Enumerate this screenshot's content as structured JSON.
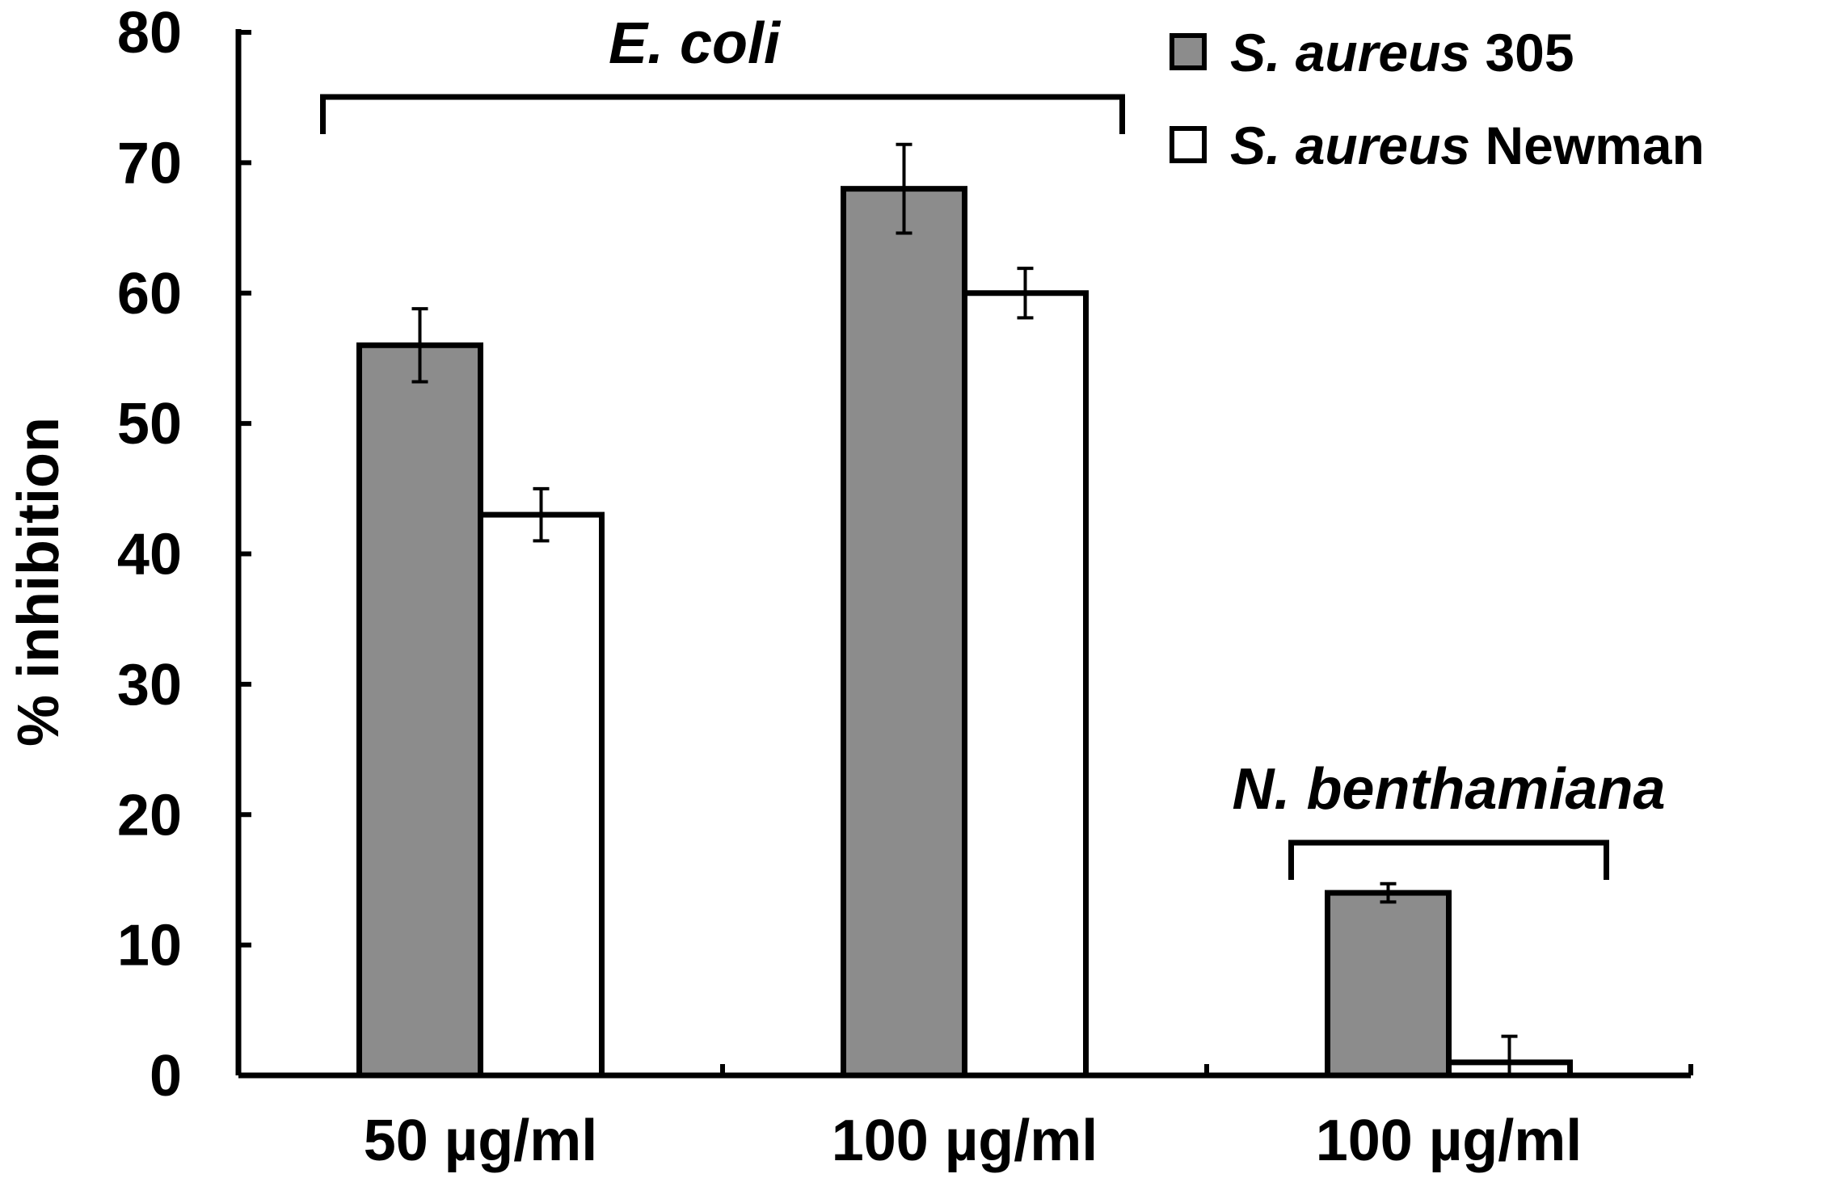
{
  "chart_data": {
    "type": "bar",
    "title": "",
    "xlabel": "",
    "ylabel": "% inhibition",
    "ylim": [
      0,
      80
    ],
    "yticks": [
      0,
      10,
      20,
      30,
      40,
      50,
      60,
      70,
      80
    ],
    "grid": false,
    "categories": [
      "50 µg/ml",
      "100 µg/ml",
      "100 µg/ml"
    ],
    "series": [
      {
        "name": "S. aureus 305",
        "name_italic": "S. aureus",
        "name_plain": "305",
        "color": "#8c8c8c",
        "values": [
          56,
          68,
          14
        ],
        "errors": [
          2.8,
          3.4,
          0.7
        ]
      },
      {
        "name": "S. aureus Newman",
        "name_italic": "S. aureus",
        "name_plain": "Newman",
        "color": "#ffffff",
        "values": [
          43,
          60,
          1
        ],
        "errors": [
          2.0,
          1.9,
          2.0
        ]
      }
    ],
    "groups": [
      {
        "label": "E. coli",
        "categories": [
          0,
          1
        ]
      },
      {
        "label": "N. benthamiana",
        "categories": [
          2
        ]
      }
    ],
    "legend_position": "top-right"
  }
}
